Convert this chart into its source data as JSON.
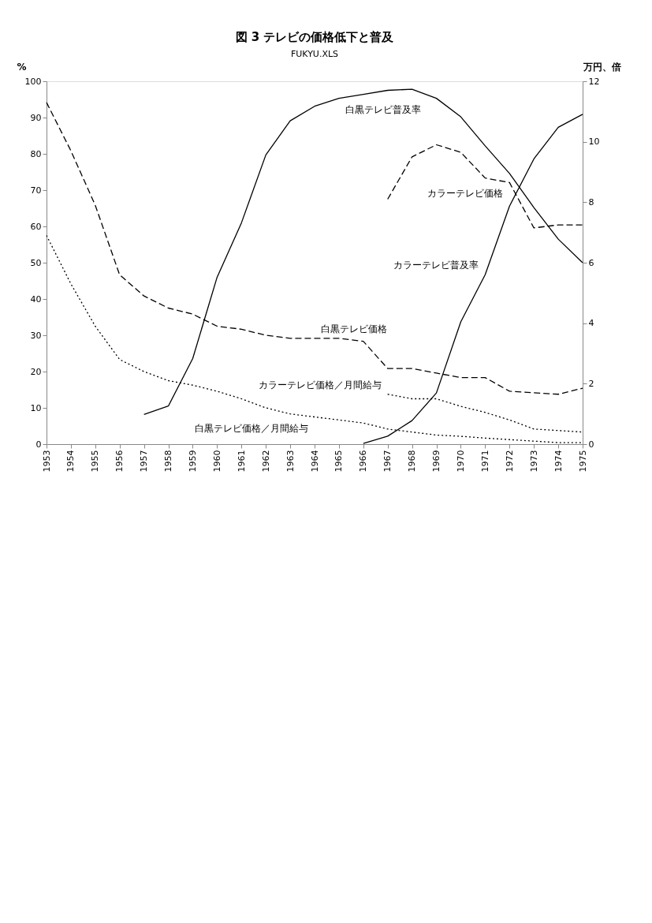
{
  "chart_data": {
    "type": "line",
    "title": "図 3 テレビの価格低下と普及",
    "ylabel": "%",
    "y2label": "万円、倍",
    "x": [
      1953,
      1954,
      1955,
      1956,
      1957,
      1958,
      1959,
      1960,
      1961,
      1962,
      1963,
      1964,
      1965,
      1966,
      1967,
      1968,
      1969,
      1970,
      1971,
      1972,
      1973,
      1974,
      1975
    ],
    "xlim": [
      1953,
      1975
    ],
    "xticks": [
      1953,
      1954,
      1955,
      1956,
      1957,
      1958,
      1959,
      1960,
      1961,
      1962,
      1963,
      1964,
      1965,
      1966,
      1967,
      1968,
      1969,
      1970,
      1971,
      1972,
      1973,
      1974,
      1975
    ],
    "ylim": [
      0,
      100
    ],
    "yticks": [
      0,
      10,
      20,
      30,
      40,
      50,
      60,
      70,
      80,
      90,
      100
    ],
    "y2lim": [
      0,
      12
    ],
    "y2ticks": [
      0,
      2,
      4,
      6,
      8,
      10,
      12
    ],
    "grid": false,
    "marker": "none",
    "series": [
      {
        "name": "白黒テレビ普及率",
        "color": "#000000",
        "line_style": "solid",
        "values": [
          null,
          null,
          null,
          null,
          8.2,
          10.5,
          23.6,
          46,
          61,
          79.7,
          89.1,
          93.1,
          95.3,
          96.4,
          97.5,
          97.8,
          95.3,
          90.2,
          82.2,
          74.6,
          65.2,
          56.5,
          50
        ]
      },
      {
        "name": "カラーテレビ普及率",
        "color": "#000000",
        "line_style": "solid",
        "values": [
          null,
          null,
          null,
          null,
          null,
          null,
          null,
          null,
          null,
          null,
          null,
          null,
          null,
          0.2,
          2.2,
          6.5,
          14.1,
          33.7,
          46.7,
          65.6,
          78.6,
          87.3,
          90.9
        ]
      },
      {
        "name": "白黒テレビ価格",
        "color": "#000000",
        "line_style": "dashed",
        "axis": "y2",
        "values": [
          11.3,
          9.7,
          7.9,
          5.6,
          4.9,
          4.5,
          4.3,
          3.9,
          3.8,
          3.6,
          3.5,
          3.5,
          3.5,
          3.4,
          2.5,
          2.5,
          2.35,
          2.2,
          2.2,
          1.75,
          1.7,
          1.65,
          1.85
        ]
      },
      {
        "name": "カラーテレビ価格",
        "color": "#000000",
        "line_style": "dashed",
        "axis": "y2",
        "values": [
          null,
          null,
          null,
          null,
          null,
          null,
          null,
          null,
          null,
          null,
          null,
          null,
          null,
          null,
          8.1,
          9.5,
          9.9,
          9.65,
          8.8,
          8.65,
          7.15,
          7.25,
          7.25
        ]
      },
      {
        "name": "白黒テレビ価格／月間給与",
        "color": "#000000",
        "line_style": "dotted",
        "axis": "y2",
        "values": [
          6.9,
          5.3,
          3.9,
          2.8,
          2.4,
          2.1,
          1.95,
          1.75,
          1.5,
          1.2,
          1.0,
          0.9,
          0.8,
          0.7,
          0.5,
          0.4,
          0.3,
          0.26,
          0.2,
          0.15,
          0.1,
          0.05,
          0.05
        ]
      },
      {
        "name": "カラーテレビ価格／月間給与",
        "color": "#000000",
        "line_style": "dotted",
        "axis": "y2",
        "values": [
          null,
          null,
          null,
          null,
          null,
          null,
          null,
          null,
          null,
          null,
          null,
          null,
          null,
          null,
          1.65,
          1.5,
          1.5,
          1.25,
          1.05,
          0.8,
          0.5,
          0.45,
          0.4
        ]
      }
    ],
    "annotations": [
      "FUKYU.XLS"
    ]
  }
}
